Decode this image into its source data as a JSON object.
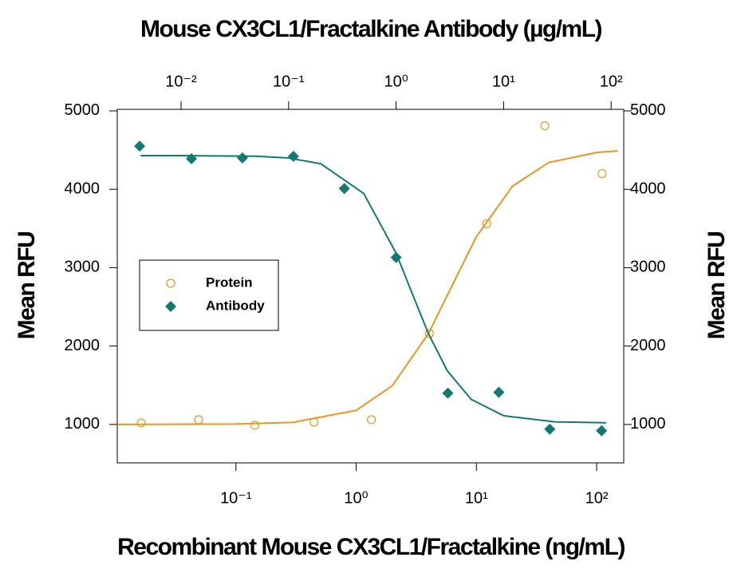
{
  "chart_data": {
    "type": "scatter",
    "title": "Mouse CX3CL1/Fractalkine Antibody (µg/mL)",
    "xlabel": "Recombinant Mouse CX3CL1/Fractalkine (ng/mL)",
    "ylabel": "Mean RFU",
    "y2label": "Mean RFU",
    "xscale": "log",
    "x2scale": "log",
    "xlim": [
      0.0103,
      168
    ],
    "xticks": [
      {
        "value": 0.1,
        "label": "10⁻¹"
      },
      {
        "value": 1,
        "label": "10⁰"
      },
      {
        "value": 10,
        "label": "10¹"
      },
      {
        "value": 100,
        "label": "10²"
      }
    ],
    "x2lim": [
      0.00255,
      131
    ],
    "x2ticks": [
      {
        "value": 0.01,
        "label": "10⁻²"
      },
      {
        "value": 0.1,
        "label": "10⁻¹"
      },
      {
        "value": 1,
        "label": "10⁰"
      },
      {
        "value": 10,
        "label": "10¹"
      },
      {
        "value": 100,
        "label": "10²"
      }
    ],
    "ylim": [
      510,
      5020
    ],
    "yticks": [
      1000,
      2000,
      3000,
      4000,
      5000
    ],
    "y2lim": [
      510,
      5020
    ],
    "y2ticks": [
      1000,
      2000,
      3000,
      4000,
      5000
    ],
    "legend": "left",
    "series": [
      {
        "name": "Protein",
        "color": "#e8961e",
        "marker": "circle",
        "xaxis": "x",
        "x": [
          0.0163,
          0.0489,
          0.144,
          0.446,
          1.34,
          4.07,
          12.2,
          37.1,
          111
        ],
        "values": [
          1020,
          1060,
          990,
          1030,
          1060,
          2160,
          3560,
          4810,
          4200
        ],
        "fit": {
          "x": [
            0.0103,
            0.1,
            0.3,
            1,
            2,
            4,
            6.2,
            10,
            20,
            40,
            100,
            150
          ],
          "values": [
            1000,
            1005,
            1027,
            1180,
            1494,
            2162,
            2755,
            3396,
            4042,
            4341,
            4469,
            4490
          ]
        }
      },
      {
        "name": "Antibody",
        "color": "#127872",
        "marker": "diamond",
        "xaxis": "x2",
        "x": [
          0.00412,
          0.0125,
          0.0372,
          0.111,
          0.33,
          1,
          3.03,
          9.03,
          26.9,
          81.5
        ],
        "values": [
          4550,
          4390,
          4400,
          4420,
          4010,
          3130,
          1400,
          1410,
          940,
          920
        ],
        "fit": {
          "x": [
            0.0042,
            0.01,
            0.05,
            0.1,
            0.2,
            0.5,
            1,
            1.36,
            2,
            3,
            5,
            10,
            30,
            90
          ],
          "values": [
            4430,
            4430,
            4421,
            4399,
            4325,
            3947,
            3185,
            2725,
            2157,
            1683,
            1319,
            1112,
            1033,
            1022
          ]
        }
      }
    ]
  }
}
